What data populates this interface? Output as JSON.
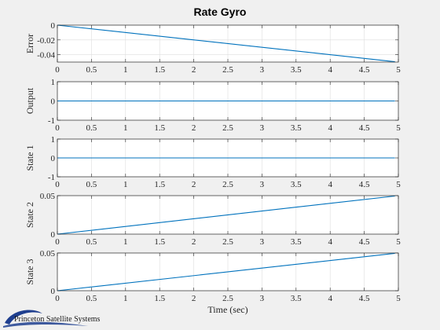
{
  "title": "Rate Gyro",
  "xlabel": "Time (sec)",
  "logo_text": "Princeton Satellite Systems",
  "colors": {
    "line": "#0072bd",
    "grid": "#dedede",
    "axis": "#262626",
    "panel": "#ffffff",
    "background": "#f0f0f0",
    "logo": "#1f3f8f"
  },
  "chart_data": [
    {
      "type": "line",
      "ylabel": "Error",
      "xlim": [
        0,
        5
      ],
      "ylim": [
        -0.05,
        0
      ],
      "x_ticks": [
        "0",
        "0.5",
        "1",
        "1.5",
        "2",
        "2.5",
        "3",
        "3.5",
        "4",
        "4.5",
        "5"
      ],
      "y_ticks": [
        {
          "value": 0,
          "label": "0"
        },
        {
          "value": -0.02,
          "label": "-0.02"
        },
        {
          "value": -0.04,
          "label": "-0.04"
        }
      ],
      "grid": true,
      "x": [
        0,
        4.95
      ],
      "y": [
        0,
        -0.0495
      ]
    },
    {
      "type": "line",
      "ylabel": "Output",
      "xlim": [
        0,
        5
      ],
      "ylim": [
        -1,
        1
      ],
      "x_ticks": [
        "0",
        "0.5",
        "1",
        "1.5",
        "2",
        "2.5",
        "3",
        "3.5",
        "4",
        "4.5",
        "5"
      ],
      "y_ticks": [
        {
          "value": 1,
          "label": "1"
        },
        {
          "value": 0,
          "label": "0"
        },
        {
          "value": -1,
          "label": "-1"
        }
      ],
      "grid": true,
      "x": [
        0,
        4.95
      ],
      "y": [
        0,
        0
      ]
    },
    {
      "type": "line",
      "ylabel": "State 1",
      "xlim": [
        0,
        5
      ],
      "ylim": [
        -1,
        1
      ],
      "x_ticks": [
        "0",
        "0.5",
        "1",
        "1.5",
        "2",
        "2.5",
        "3",
        "3.5",
        "4",
        "4.5",
        "5"
      ],
      "y_ticks": [
        {
          "value": 1,
          "label": "1"
        },
        {
          "value": 0,
          "label": "0"
        },
        {
          "value": -1,
          "label": "-1"
        }
      ],
      "grid": true,
      "x": [
        0,
        4.95
      ],
      "y": [
        0,
        0
      ]
    },
    {
      "type": "line",
      "ylabel": "State 2",
      "xlim": [
        0,
        5
      ],
      "ylim": [
        0,
        0.05
      ],
      "x_ticks": [
        "0",
        "0.5",
        "1",
        "1.5",
        "2",
        "2.5",
        "3",
        "3.5",
        "4",
        "4.5",
        "5"
      ],
      "y_ticks": [
        {
          "value": 0.05,
          "label": "0.05"
        },
        {
          "value": 0,
          "label": "0"
        }
      ],
      "grid": true,
      "x": [
        0,
        4.95
      ],
      "y": [
        0,
        0.0495
      ]
    },
    {
      "type": "line",
      "ylabel": "State 3",
      "xlim": [
        0,
        5
      ],
      "ylim": [
        0,
        0.05
      ],
      "x_ticks": [
        "0",
        "0.5",
        "1",
        "1.5",
        "2",
        "2.5",
        "3",
        "3.5",
        "4",
        "4.5",
        "5"
      ],
      "y_ticks": [
        {
          "value": 0.05,
          "label": "0.05"
        },
        {
          "value": 0,
          "label": "0"
        }
      ],
      "grid": true,
      "x": [
        0,
        4.95
      ],
      "y": [
        0,
        0.0495
      ]
    }
  ]
}
